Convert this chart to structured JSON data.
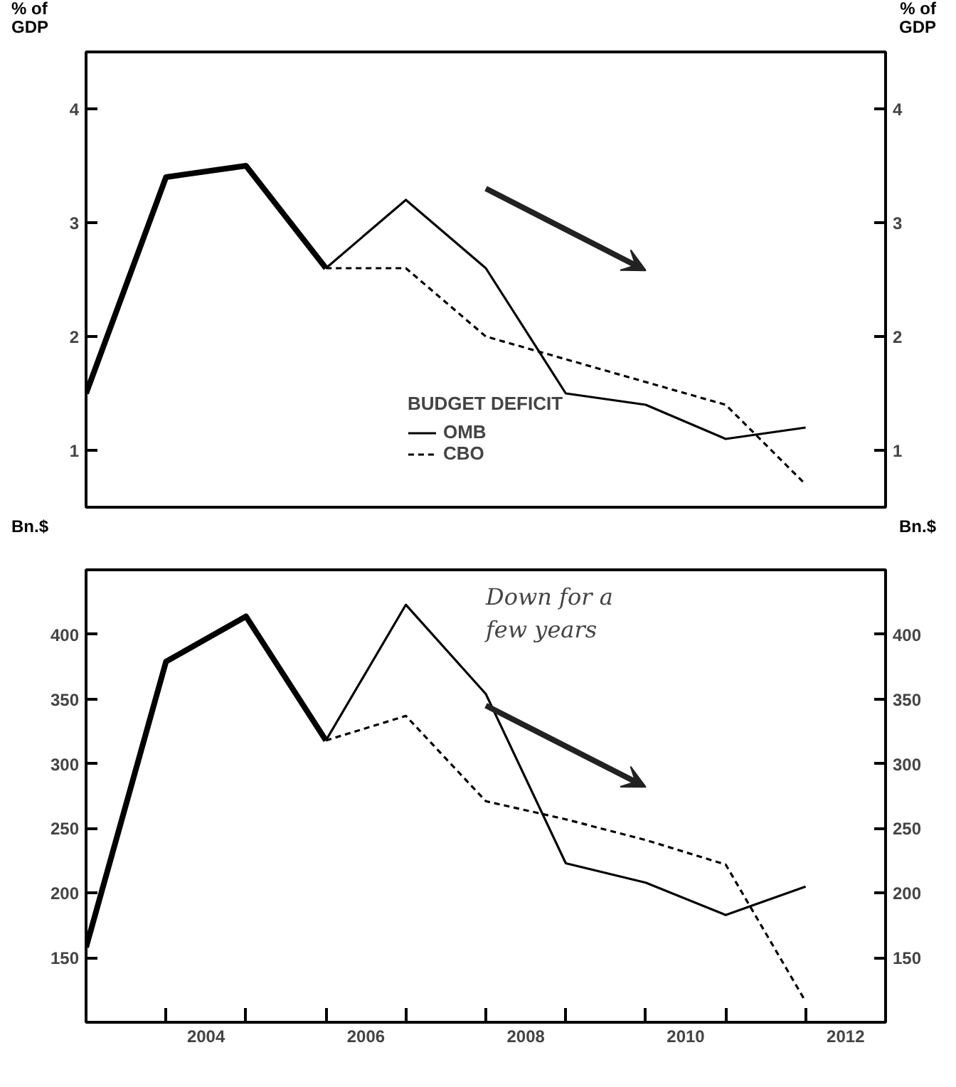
{
  "chart_data": [
    {
      "type": "line",
      "x": [
        2003,
        2004,
        2005,
        2006,
        2007,
        2008,
        2009,
        2010,
        2011,
        2012
      ],
      "xlim": [
        2003,
        2013
      ],
      "tick_labels": "y",
      "ylabel": "% of\nGDP",
      "y2label": "% of\nGDP",
      "ylim": [
        0.5,
        4.5
      ],
      "yticks": [
        1,
        2,
        3,
        4
      ],
      "y2lim": [
        0.5,
        4.5
      ],
      "y2ticks": [
        1,
        2,
        3,
        4
      ],
      "legend_title": "BUDGET DEFICIT",
      "legend": "bottom",
      "grid": false,
      "marker": "none",
      "series": [
        {
          "color": "#000000",
          "line_style": "solid",
          "values": [
            1.5,
            3.4,
            3.5,
            2.6,
            null,
            null,
            null,
            null,
            null,
            null
          ]
        },
        {
          "name": "OMB",
          "color": "#000000",
          "line_style": "solid",
          "values": [
            null,
            null,
            null,
            2.6,
            3.2,
            2.6,
            1.5,
            1.4,
            1.1,
            1.2
          ]
        },
        {
          "name": "CBO",
          "color": "#000000",
          "line_style": "dashed",
          "values": [
            null,
            null,
            null,
            2.6,
            2.6,
            2.0,
            1.8,
            1.6,
            1.4,
            0.7
          ]
        }
      ]
    },
    {
      "type": "line",
      "x": [
        2003,
        2004,
        2005,
        2006,
        2007,
        2008,
        2009,
        2010,
        2011,
        2012
      ],
      "xlim": [
        2003,
        2013
      ],
      "xticks": [
        {
          "value": 2004,
          "label": null
        },
        {
          "value": 2004.5,
          "label": "2004"
        },
        {
          "value": 2005,
          "label": null
        },
        {
          "value": 2006,
          "label": null
        },
        {
          "value": 2006.5,
          "label": "2006"
        },
        {
          "value": 2007,
          "label": null
        },
        {
          "value": 2008,
          "label": null
        },
        {
          "value": 2008.5,
          "label": "2008"
        },
        {
          "value": 2009,
          "label": null
        },
        {
          "value": 2010,
          "label": null
        },
        {
          "value": 2010.5,
          "label": "2010"
        },
        {
          "value": 2011,
          "label": null
        },
        {
          "value": 2012,
          "label": null
        },
        {
          "value": 2012.5,
          "label": "2012"
        }
      ],
      "ylabel": "Bn.$",
      "y2label": "Bn.$",
      "ylim": [
        100,
        450
      ],
      "yticks": [
        150,
        200,
        250,
        300,
        350,
        400
      ],
      "y2lim": [
        100,
        450
      ],
      "y2ticks": [
        150,
        200,
        250,
        300,
        350,
        400
      ],
      "legend": false,
      "grid": false,
      "marker": "none",
      "annotations": [
        "Down for a\nfew years"
      ],
      "series": [
        {
          "color": "#000000",
          "line_style": "solid",
          "values": [
            158,
            379,
            414,
            318,
            null,
            null,
            null,
            null,
            null,
            null
          ]
        },
        {
          "color": "#000000",
          "line_style": "solid",
          "values": [
            null,
            null,
            null,
            318,
            423,
            354,
            223,
            208,
            183,
            205
          ]
        },
        {
          "color": "#000000",
          "line_style": "dashed",
          "values": [
            null,
            null,
            null,
            318,
            337,
            271,
            257,
            241,
            222,
            116
          ]
        }
      ]
    }
  ]
}
